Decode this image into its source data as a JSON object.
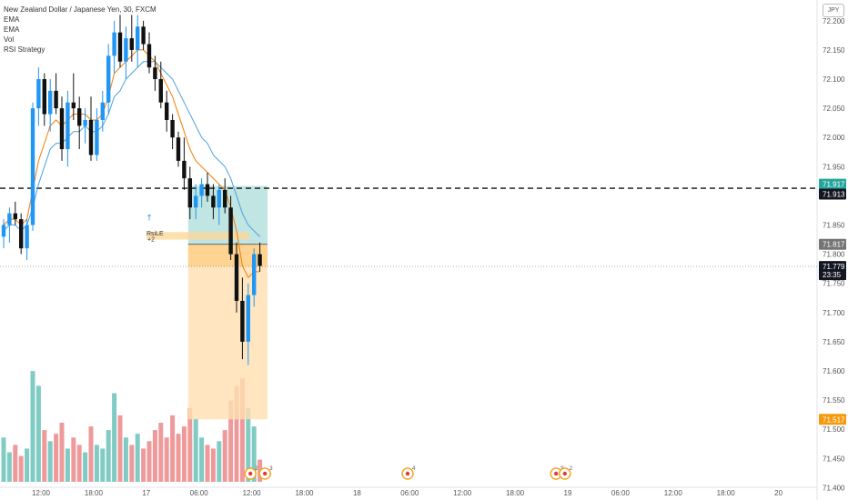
{
  "legend": {
    "title": "New Zealand Dollar / Japanese Yen, 30, FXCM",
    "indicators": [
      "EMA",
      "EMA",
      "Vol",
      "RSI Strategy"
    ]
  },
  "currency_button": "JPY",
  "colors": {
    "up": "#2196f3",
    "down": "#111111",
    "vol_up": "#80cbc4",
    "vol_down": "#ef9a9a",
    "ema_fast": "#f57c00",
    "ema_slow": "#4aa3df",
    "target_zone": "#b2dfdb",
    "stop_zone": "#ffe0b2",
    "entry_zone": "#ffcc80",
    "signal_band": "#fbd89a",
    "dashed_line": "#111111",
    "target_label_bg": "#26a69a",
    "stop_label_bg": "#f59a0e",
    "dark_label_bg": "#131722",
    "gray_label_bg": "#757575"
  },
  "chart_data": {
    "type": "candlestick",
    "y_axis": {
      "ticks": [
        "72.200",
        "72.150",
        "72.100",
        "72.050",
        "72.000",
        "71.950",
        "71.900",
        "71.850",
        "71.800",
        "71.750",
        "71.700",
        "71.650",
        "71.600",
        "71.550",
        "71.500",
        "71.450",
        "71.400"
      ],
      "range": [
        71.385,
        72.22
      ]
    },
    "x_axis": {
      "ticks": [
        "12:00",
        "18:00",
        "17",
        "06:00",
        "12:00",
        "18:00",
        "18",
        "06:00",
        "12:00",
        "18:00",
        "19",
        "06:00",
        "12:00",
        "18:00",
        "20"
      ]
    },
    "price_labels": {
      "target": "71.917",
      "line": "71.913",
      "entry": "71.817",
      "last": "71.779",
      "countdown": "23:35",
      "stop": "71.517"
    },
    "horizontal_line_value": 71.913,
    "last_price_value": 71.779,
    "position": {
      "entry": 71.817,
      "target": 71.917,
      "stop": 71.517,
      "start_index": 32,
      "end_index": 45
    },
    "signal": {
      "label": "RsiLE",
      "sub_label": "+2",
      "bar_index": 25
    },
    "events": [
      {
        "time_index": 38,
        "count": "2"
      },
      {
        "time_index": 40.5,
        "count": "3"
      },
      {
        "time_index": 65,
        "count": "4"
      },
      {
        "time_index": 90.5,
        "count": "9"
      },
      {
        "time_index": 92,
        "count": "2"
      }
    ],
    "candles": [
      [
        71.83,
        71.86,
        71.81,
        71.85
      ],
      [
        71.85,
        71.88,
        71.82,
        71.87
      ],
      [
        71.87,
        71.89,
        71.85,
        71.86
      ],
      [
        71.86,
        71.87,
        71.8,
        71.81
      ],
      [
        71.81,
        71.86,
        71.79,
        71.85
      ],
      [
        71.85,
        72.06,
        71.84,
        72.05
      ],
      [
        72.05,
        72.12,
        72.02,
        72.1
      ],
      [
        72.1,
        72.11,
        72.02,
        72.04
      ],
      [
        72.04,
        72.1,
        72.01,
        72.08
      ],
      [
        72.08,
        72.11,
        72.04,
        72.05
      ],
      [
        72.05,
        72.07,
        71.96,
        71.98
      ],
      [
        71.98,
        72.08,
        71.95,
        72.06
      ],
      [
        72.06,
        72.11,
        72.03,
        72.05
      ],
      [
        72.05,
        72.07,
        71.98,
        72.02
      ],
      [
        72.02,
        72.05,
        71.99,
        72.03
      ],
      [
        72.03,
        72.07,
        71.96,
        71.97
      ],
      [
        71.97,
        72.05,
        71.96,
        72.03
      ],
      [
        72.03,
        72.08,
        72.01,
        72.06
      ],
      [
        72.06,
        72.16,
        72.04,
        72.14
      ],
      [
        72.14,
        72.2,
        72.11,
        72.18
      ],
      [
        72.18,
        72.21,
        72.12,
        72.13
      ],
      [
        72.13,
        72.19,
        72.1,
        72.17
      ],
      [
        72.17,
        72.21,
        72.13,
        72.15
      ],
      [
        72.15,
        72.21,
        72.12,
        72.19
      ],
      [
        72.19,
        72.2,
        72.15,
        72.16
      ],
      [
        72.16,
        72.18,
        72.11,
        72.12
      ],
      [
        72.12,
        72.14,
        72.08,
        72.1
      ],
      [
        72.1,
        72.13,
        72.05,
        72.06
      ],
      [
        72.06,
        72.08,
        72.01,
        72.03
      ],
      [
        72.03,
        72.04,
        71.98,
        72.0
      ],
      [
        72.0,
        72.01,
        71.95,
        71.96
      ],
      [
        71.96,
        72.0,
        71.91,
        71.93
      ],
      [
        71.93,
        71.95,
        71.86,
        71.88
      ],
      [
        71.88,
        71.92,
        71.86,
        71.9
      ],
      [
        71.9,
        71.93,
        71.88,
        71.92
      ],
      [
        71.92,
        71.94,
        71.89,
        71.9
      ],
      [
        71.9,
        71.92,
        71.86,
        71.88
      ],
      [
        71.88,
        71.92,
        71.85,
        71.91
      ],
      [
        71.91,
        71.93,
        71.87,
        71.88
      ],
      [
        71.88,
        71.9,
        71.79,
        71.8
      ],
      [
        71.8,
        71.82,
        71.7,
        71.72
      ],
      [
        71.72,
        71.76,
        71.62,
        71.65
      ],
      [
        71.65,
        71.75,
        71.61,
        71.73
      ],
      [
        71.73,
        71.81,
        71.71,
        71.8
      ],
      [
        71.8,
        71.82,
        71.77,
        71.78
      ]
    ],
    "ema_fast": [
      71.85,
      71.86,
      71.86,
      71.85,
      71.86,
      71.91,
      71.96,
      71.99,
      72.02,
      72.03,
      72.02,
      72.03,
      72.04,
      72.04,
      72.04,
      72.03,
      72.03,
      72.04,
      72.07,
      72.11,
      72.12,
      72.13,
      72.14,
      72.15,
      72.15,
      72.14,
      72.13,
      72.11,
      72.09,
      72.07,
      72.04,
      72.01,
      71.98,
      71.96,
      71.95,
      71.94,
      71.93,
      71.92,
      71.91,
      71.88,
      71.84,
      71.78,
      71.76,
      71.77,
      71.77
    ],
    "ema_slow": [
      71.84,
      71.85,
      71.85,
      71.84,
      71.85,
      71.88,
      71.92,
      71.95,
      71.98,
      71.99,
      71.99,
      72.0,
      72.01,
      72.01,
      72.02,
      72.01,
      72.01,
      72.02,
      72.04,
      72.07,
      72.08,
      72.1,
      72.11,
      72.12,
      72.13,
      72.13,
      72.13,
      72.12,
      72.11,
      72.1,
      72.08,
      72.06,
      72.04,
      72.02,
      72.0,
      71.99,
      71.97,
      71.96,
      71.95,
      71.93,
      71.9,
      71.87,
      71.85,
      71.84,
      71.83
    ],
    "volumes": [
      12,
      8,
      10,
      7,
      9,
      30,
      26,
      14,
      11,
      13,
      16,
      9,
      12,
      10,
      8,
      15,
      10,
      9,
      14,
      24,
      18,
      12,
      10,
      13,
      9,
      11,
      14,
      16,
      12,
      18,
      13,
      15,
      20,
      17,
      12,
      10,
      9,
      11,
      14,
      22,
      26,
      28,
      20,
      15,
      6
    ],
    "volume_max": 32
  }
}
